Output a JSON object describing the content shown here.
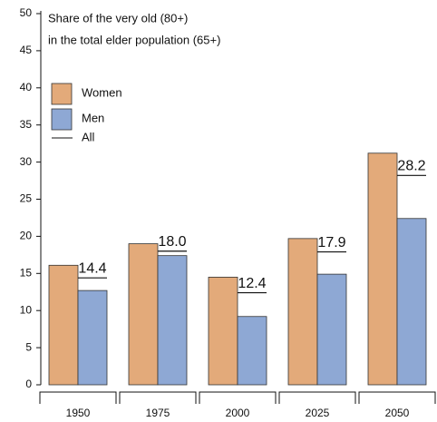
{
  "chart_data": {
    "type": "bar",
    "title_lines": [
      "Share of the very old (80+)",
      "in the total elder population (65+)"
    ],
    "categories": [
      "1950",
      "1975",
      "2000",
      "2025",
      "2050"
    ],
    "series": [
      {
        "name": "Women",
        "color": "#e3aa7a",
        "values": [
          16.1,
          19.0,
          14.5,
          19.7,
          31.2
        ]
      },
      {
        "name": "Men",
        "color": "#8ea8d4",
        "values": [
          12.7,
          17.4,
          9.2,
          14.9,
          22.4
        ]
      },
      {
        "name": "All",
        "color": "#111111",
        "values": [
          14.4,
          18.0,
          12.4,
          17.9,
          28.2
        ],
        "value_labels": [
          "14.4",
          "18.0",
          "12.4",
          "17.9",
          "28.2"
        ]
      }
    ],
    "ylim": [
      0,
      50
    ],
    "yticks": [
      0,
      5,
      10,
      15,
      20,
      25,
      30,
      35,
      40,
      45,
      50
    ]
  }
}
